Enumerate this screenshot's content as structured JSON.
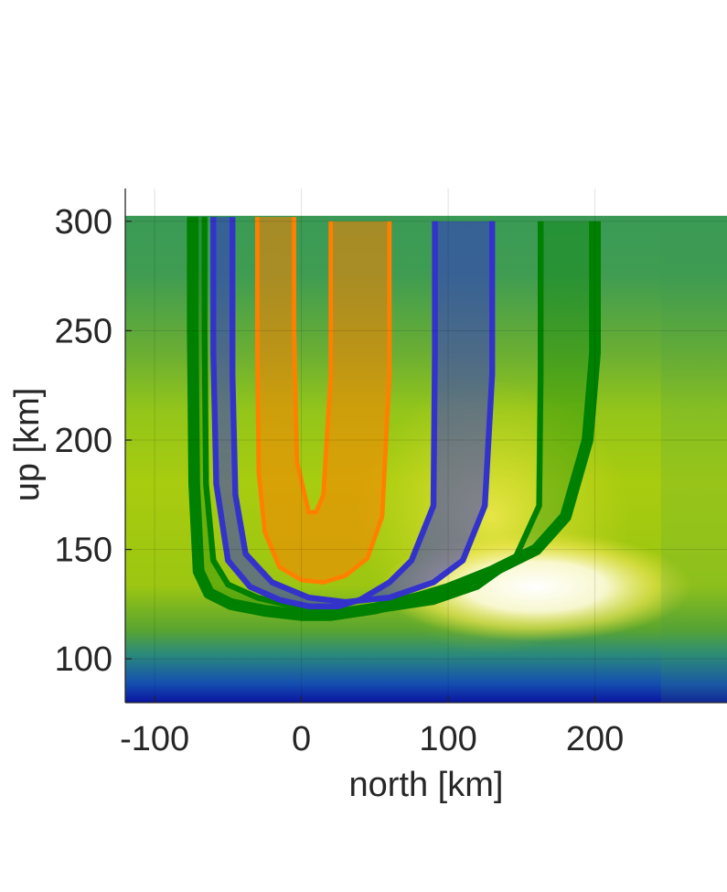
{
  "chart_data": {
    "type": "line",
    "xlabel": "north [km]",
    "ylabel": "up [km]",
    "xlim": [
      -120,
      290
    ],
    "ylim": [
      80,
      315
    ],
    "xticks": [
      -100,
      0,
      100,
      200
    ],
    "yticks": [
      100,
      150,
      200,
      250,
      300
    ],
    "grid": true,
    "background": {
      "kind": "heatmap",
      "colormap": [
        "#0b1fa8",
        "#1c6ab0",
        "#2a8f9a",
        "#3a9a55",
        "#7fba2a",
        "#b8d20c",
        "#f5ec5a",
        "#fbfbe6",
        "#ffffff"
      ],
      "description_levels": "blue at bottom, green/yellow band, bright white region near up 125-150 km north 80-220 km"
    },
    "series": [
      {
        "color": "#008000",
        "x": [
          -74,
          -74,
          -73,
          -70,
          -63,
          -48,
          -25,
          0,
          20,
          50,
          80,
          100,
          130,
          160,
          180,
          195,
          200,
          200
        ],
        "y": [
          302,
          250,
          180,
          140,
          130,
          125,
          122,
          120,
          120,
          123,
          128,
          132,
          140,
          150,
          165,
          200,
          240,
          300
        ],
        "thickness_km": 8
      },
      {
        "color": "#008000",
        "x": [
          -66,
          -66,
          -65,
          -60,
          -50,
          -30,
          -5,
          20,
          50,
          90,
          120,
          145,
          162,
          163,
          163
        ],
        "y": [
          302,
          250,
          180,
          145,
          134,
          128,
          124,
          122,
          122,
          126,
          133,
          145,
          170,
          230,
          300
        ],
        "thickness_km": 4
      },
      {
        "color": "#3333cc",
        "x": [
          -60,
          -60,
          -58,
          -50,
          -35,
          -15,
          5,
          25,
          40,
          60,
          75,
          90,
          91,
          91
        ],
        "y": [
          302,
          240,
          180,
          145,
          133,
          127,
          124,
          124,
          127,
          135,
          145,
          170,
          240,
          300
        ],
        "thickness_km": 4
      },
      {
        "color": "#3333cc",
        "x": [
          -47,
          -47,
          -45,
          -38,
          -20,
          5,
          30,
          60,
          90,
          110,
          125,
          130,
          130
        ],
        "y": [
          302,
          230,
          175,
          148,
          135,
          128,
          126,
          128,
          135,
          145,
          170,
          230,
          300
        ],
        "thickness_km": 4
      },
      {
        "color": "#ff8000",
        "x": [
          -30,
          -30,
          -29,
          -25,
          -15,
          0,
          15,
          30,
          45,
          55,
          60,
          60
        ],
        "y": [
          302,
          240,
          185,
          158,
          142,
          136,
          135,
          138,
          146,
          165,
          230,
          300
        ],
        "thickness_km": 3
      },
      {
        "color": "#ff8000",
        "x": [
          -5,
          -5,
          -3,
          5,
          10,
          15,
          20,
          20
        ],
        "y": [
          302,
          250,
          190,
          167,
          167,
          175,
          230,
          300
        ],
        "thickness_km": 3
      }
    ],
    "fills": [
      {
        "color": "#008000",
        "between": [
          0,
          1
        ],
        "opacity": 0.35
      },
      {
        "color": "#3333cc",
        "between": [
          2,
          3
        ],
        "opacity": 0.55
      },
      {
        "color": "#ff8000",
        "between": [
          4,
          5
        ],
        "opacity": 0.55
      }
    ]
  }
}
